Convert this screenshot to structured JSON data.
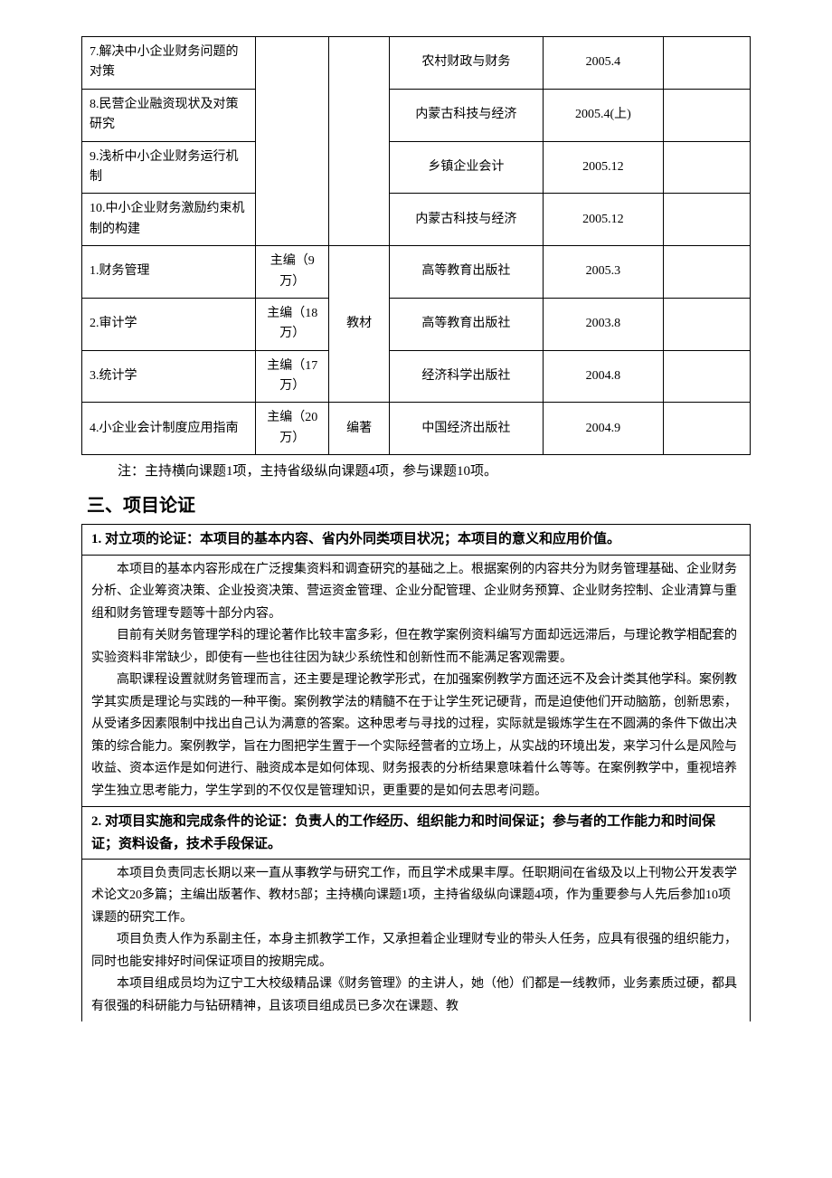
{
  "pub_table": {
    "col_widths": [
      "26%",
      "11%",
      "9%",
      "23%",
      "18%",
      "13%"
    ],
    "papers": [
      {
        "title": "7.解决中小企业财务问题的对策",
        "journal": "农村财政与财务",
        "date": "2005.4"
      },
      {
        "title": "8.民营企业融资现状及对策研究",
        "journal": "内蒙古科技与经济",
        "date": "2005.4(上)"
      },
      {
        "title": "9.浅析中小企业财务运行机制",
        "journal": "乡镇企业会计",
        "date": "2005.12"
      },
      {
        "title": "10.中小企业财务激励约束机制的构建",
        "journal": "内蒙古科技与经济",
        "date": "2005.12"
      }
    ],
    "textbook_label": "教材",
    "textbooks": [
      {
        "title": "1.财务管理",
        "role": "主编（9万）",
        "publisher": "高等教育出版社",
        "date": "2005.3"
      },
      {
        "title": "2.审计学",
        "role": "主编（18万）",
        "publisher": "高等教育出版社",
        "date": "2003.8"
      },
      {
        "title": "3.统计学",
        "role": "主编（17万）",
        "publisher": "经济科学出版社",
        "date": "2004.8"
      }
    ],
    "monograph_label": "编著",
    "monograph": {
      "title": "4.小企业会计制度应用指南",
      "role": "主编（20万）",
      "publisher": "中国经济出版社",
      "date": "2004.9"
    }
  },
  "note": "注：主持横向课题1项，主持省级纵向课题4项，参与课题10项。",
  "section_title": "三、项目论证",
  "arg1": {
    "heading": "1. 对立项的论证：本项目的基本内容、省内外同类项目状况；本项目的意义和应用价值。",
    "paras": [
      "本项目的基本内容形成在广泛搜集资料和调查研究的基础之上。根据案例的内容共分为财务管理基础、企业财务分析、企业筹资决策、企业投资决策、营运资金管理、企业分配管理、企业财务预算、企业财务控制、企业清算与重组和财务管理专题等十部分内容。",
      "目前有关财务管理学科的理论著作比较丰富多彩，但在教学案例资料编写方面却远远滞后，与理论教学相配套的实验资料非常缺少，即使有一些也往往因为缺少系统性和创新性而不能满足客观需要。",
      "高职课程设置就财务管理而言，还主要是理论教学形式，在加强案例教学方面还远不及会计类其他学科。案例教学其实质是理论与实践的一种平衡。案例教学法的精髓不在于让学生死记硬背，而是迫使他们开动脑筋，创新思索，从受诸多因素限制中找出自己认为满意的答案。这种思考与寻找的过程，实际就是锻炼学生在不圆满的条件下做出决策的综合能力。案例教学，旨在力图把学生置于一个实际经营者的立场上，从实战的环境出发，来学习什么是风险与收益、资本运作是如何进行、融资成本是如何体现、财务报表的分析结果意味着什么等等。在案例教学中，重视培养学生独立思考能力，学生学到的不仅仅是管理知识，更重要的是如何去思考问题。"
    ]
  },
  "arg2": {
    "heading": "2. 对项目实施和完成条件的论证：负责人的工作经历、组织能力和时间保证；参与者的工作能力和时间保证；资料设备，技术手段保证。",
    "paras": [
      "本项目负责同志长期以来一直从事教学与研究工作，而且学术成果丰厚。任职期间在省级及以上刊物公开发表学术论文20多篇；主编出版著作、教材5部；主持横向课题1项，主持省级纵向课题4项，作为重要参与人先后参加10项课题的研究工作。",
      "项目负责人作为系副主任，本身主抓教学工作，又承担着企业理财专业的带头人任务，应具有很强的组织能力，同时也能安排好时间保证项目的按期完成。",
      "本项目组成员均为辽宁工大校级精品课《财务管理》的主讲人，她（他）们都是一线教师，业务素质过硬，都具有很强的科研能力与钻研精神，且该项目组成员已多次在课题、教"
    ]
  }
}
